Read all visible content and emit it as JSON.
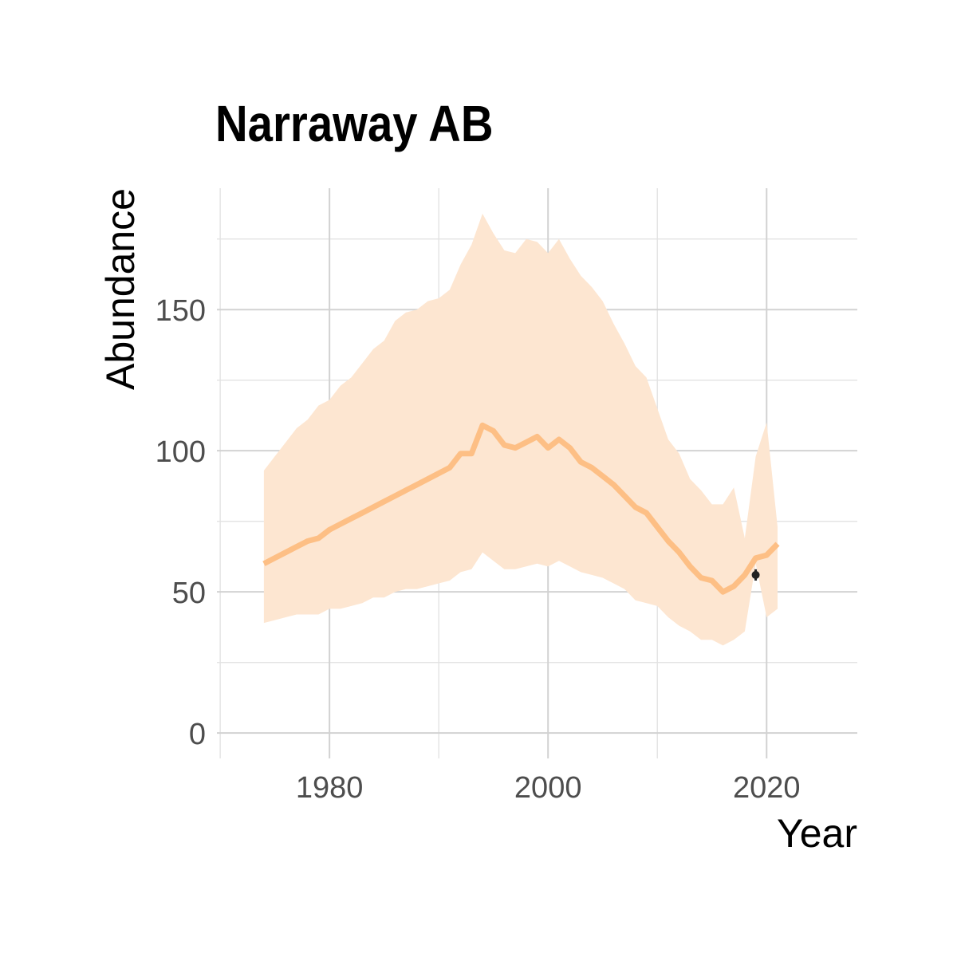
{
  "chart_data": {
    "type": "line",
    "title": "Narraway AB",
    "xlabel": "Year",
    "ylabel": "Abundance",
    "xlim": [
      1969.7,
      2028.3
    ],
    "ylim": [
      -9,
      193
    ],
    "x_ticks": [
      1980,
      2000,
      2020
    ],
    "x_minor_gridlines": [
      1970,
      1990,
      2010
    ],
    "y_ticks": [
      0,
      50,
      100,
      150
    ],
    "y_minor_gridlines": [
      25,
      75,
      125,
      175
    ],
    "grid": true,
    "series": [
      {
        "name": "Estimated abundance",
        "color": "#fdbf85",
        "x": [
          1974,
          1975,
          1976,
          1977,
          1978,
          1979,
          1980,
          1981,
          1982,
          1983,
          1984,
          1985,
          1986,
          1987,
          1988,
          1989,
          1990,
          1991,
          1992,
          1993,
          1994,
          1995,
          1996,
          1997,
          1998,
          1999,
          2000,
          2001,
          2002,
          2003,
          2004,
          2005,
          2006,
          2007,
          2008,
          2009,
          2010,
          2011,
          2012,
          2013,
          2014,
          2015,
          2016,
          2017,
          2018,
          2019,
          2020,
          2021
        ],
        "values": [
          60,
          62,
          64,
          66,
          68,
          69,
          72,
          74,
          76,
          78,
          80,
          82,
          84,
          86,
          88,
          90,
          92,
          94,
          99,
          99,
          109,
          107,
          102,
          101,
          103,
          105,
          101,
          104,
          101,
          96,
          94,
          91,
          88,
          84,
          80,
          78,
          73,
          68,
          64,
          59,
          55,
          54,
          50,
          52,
          56,
          62,
          63,
          67
        ]
      }
    ],
    "confidence_band": {
      "color": "#fde6d1",
      "x": [
        1974,
        1975,
        1976,
        1977,
        1978,
        1979,
        1980,
        1981,
        1982,
        1983,
        1984,
        1985,
        1986,
        1987,
        1988,
        1989,
        1990,
        1991,
        1992,
        1993,
        1994,
        1995,
        1996,
        1997,
        1998,
        1999,
        2000,
        2001,
        2002,
        2003,
        2004,
        2005,
        2006,
        2007,
        2008,
        2009,
        2010,
        2011,
        2012,
        2013,
        2014,
        2015,
        2016,
        2017,
        2018,
        2019,
        2020,
        2021
      ],
      "lower": [
        39,
        40,
        41,
        42,
        42,
        42,
        44,
        44,
        45,
        46,
        48,
        48,
        50,
        51,
        51,
        52,
        53,
        54,
        57,
        58,
        64,
        61,
        58,
        58,
        59,
        60,
        59,
        61,
        59,
        57,
        56,
        55,
        53,
        51,
        47,
        46,
        45,
        41,
        38,
        36,
        33,
        33,
        31,
        33,
        36,
        60,
        41,
        44
      ],
      "upper": [
        93,
        98,
        103,
        108,
        111,
        116,
        118,
        123,
        126,
        131,
        136,
        139,
        146,
        149,
        150,
        153,
        154,
        157,
        166,
        173,
        184,
        177,
        171,
        170,
        175,
        174,
        170,
        175,
        168,
        162,
        158,
        153,
        145,
        138,
        130,
        126,
        115,
        104,
        99,
        90,
        86,
        81,
        81,
        87,
        69,
        98,
        110,
        73
      ]
    },
    "observations": [
      {
        "x": 2019,
        "y": 56,
        "ymin": 54,
        "ymax": 58,
        "color": "#222222"
      }
    ]
  }
}
